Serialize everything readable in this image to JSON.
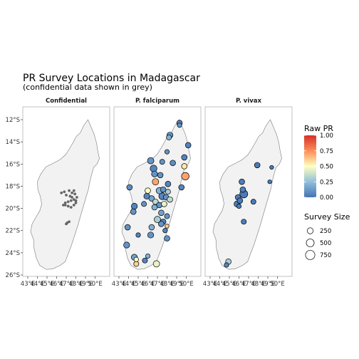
{
  "title": "PR Survey Locations in Madagascar",
  "subtitle": "(confidential data shown in grey)",
  "chart_data": {
    "type": "scatter",
    "xlim": [
      43,
      51
    ],
    "ylim": [
      -26,
      -12
    ],
    "x_ticks": [
      43,
      44,
      45,
      46,
      47,
      48,
      49,
      50
    ],
    "x_tick_labels": [
      "43°E",
      "44°E",
      "45°E",
      "46°E",
      "47°E",
      "48°E",
      "49°E",
      "50°E"
    ],
    "y_ticks": [
      -12,
      -14,
      -16,
      -18,
      -20,
      -22,
      -24,
      -26
    ],
    "y_tick_labels": [
      "12°S",
      "14°S",
      "16°S",
      "18°S",
      "20°S",
      "22°S",
      "24°S",
      "26°S"
    ],
    "color_scale": {
      "name": "Raw PR",
      "min": 0,
      "max": 1,
      "ticks": [
        "0.00",
        "0.25",
        "0.50",
        "0.75",
        "1.00"
      ],
      "colors": [
        "#4575b4",
        "#91bfdb",
        "#ffffbf",
        "#fc8d59",
        "#d73027"
      ]
    },
    "size_scale": {
      "name": "Survey Size",
      "breaks": [
        250,
        500,
        750
      ],
      "labels": [
        "250",
        "500",
        "750"
      ]
    },
    "panels": [
      {
        "name": "Confidential",
        "point_color": "#666666",
        "points": [
          {
            "lon": 46.5,
            "lat": -18.6
          },
          {
            "lon": 46.8,
            "lat": -18.5
          },
          {
            "lon": 47.3,
            "lat": -18.4
          },
          {
            "lon": 47.8,
            "lat": -18.4
          },
          {
            "lon": 47.0,
            "lat": -18.8
          },
          {
            "lon": 47.4,
            "lat": -18.9
          },
          {
            "lon": 47.9,
            "lat": -18.7
          },
          {
            "lon": 48.1,
            "lat": -19.0
          },
          {
            "lon": 47.6,
            "lat": -19.0
          },
          {
            "lon": 47.8,
            "lat": -19.2
          },
          {
            "lon": 48.0,
            "lat": -19.3
          },
          {
            "lon": 47.5,
            "lat": -19.3
          },
          {
            "lon": 46.9,
            "lat": -19.5
          },
          {
            "lon": 47.2,
            "lat": -19.4
          },
          {
            "lon": 46.9,
            "lat": -19.7
          },
          {
            "lon": 47.2,
            "lat": -19.8
          },
          {
            "lon": 47.5,
            "lat": -19.9
          },
          {
            "lon": 47.8,
            "lat": -19.7
          },
          {
            "lon": 46.7,
            "lat": -19.7
          },
          {
            "lon": 47.1,
            "lat": -21.3
          },
          {
            "lon": 47.3,
            "lat": -21.2
          },
          {
            "lon": 47.0,
            "lat": -21.4
          },
          {
            "lon": 48.0,
            "lat": -19.5
          },
          {
            "lon": 47.6,
            "lat": -18.6
          }
        ]
      },
      {
        "name": "P. falciparum",
        "points": [
          {
            "lon": 49.3,
            "lat": -12.3,
            "pr": 0.05,
            "n": 300
          },
          {
            "lon": 49.3,
            "lat": -12.5,
            "pr": 0.1,
            "n": 200
          },
          {
            "lon": 48.3,
            "lat": -13.4,
            "pr": 0.1,
            "n": 350
          },
          {
            "lon": 48.2,
            "lat": -13.6,
            "pr": 0.2,
            "n": 250
          },
          {
            "lon": 50.2,
            "lat": -14.3,
            "pr": 0.05,
            "n": 300
          },
          {
            "lon": 48.0,
            "lat": -14.9,
            "pr": 0.1,
            "n": 200
          },
          {
            "lon": 49.8,
            "lat": -15.4,
            "pr": 0.05,
            "n": 300
          },
          {
            "lon": 46.3,
            "lat": -15.7,
            "pr": 0.1,
            "n": 400
          },
          {
            "lon": 47.5,
            "lat": -15.8,
            "pr": 0.1,
            "n": 250
          },
          {
            "lon": 46.6,
            "lat": -16.4,
            "pr": 0.05,
            "n": 450
          },
          {
            "lon": 48.6,
            "lat": -15.9,
            "pr": 0.08,
            "n": 300
          },
          {
            "lon": 49.8,
            "lat": -16.2,
            "pr": 0.55,
            "n": 300
          },
          {
            "lon": 46.7,
            "lat": -16.9,
            "pr": 0.1,
            "n": 350
          },
          {
            "lon": 49.9,
            "lat": -17.1,
            "pr": 0.7,
            "n": 550
          },
          {
            "lon": 47.3,
            "lat": -17.0,
            "pr": 0.1,
            "n": 300
          },
          {
            "lon": 46.8,
            "lat": -17.6,
            "pr": 0.7,
            "n": 400
          },
          {
            "lon": 48.1,
            "lat": -17.8,
            "pr": 0.05,
            "n": 300
          },
          {
            "lon": 44.1,
            "lat": -18.1,
            "pr": 0.08,
            "n": 300
          },
          {
            "lon": 49.5,
            "lat": -18.1,
            "pr": 0.05,
            "n": 300
          },
          {
            "lon": 46.0,
            "lat": -18.4,
            "pr": 0.5,
            "n": 300
          },
          {
            "lon": 47.2,
            "lat": -18.4,
            "pr": 0.2,
            "n": 400
          },
          {
            "lon": 47.6,
            "lat": -18.3,
            "pr": 0.1,
            "n": 300
          },
          {
            "lon": 48.1,
            "lat": -18.5,
            "pr": 0.3,
            "n": 250
          },
          {
            "lon": 45.9,
            "lat": -18.9,
            "pr": 0.05,
            "n": 350
          },
          {
            "lon": 46.4,
            "lat": -19.1,
            "pr": 0.15,
            "n": 300
          },
          {
            "lon": 47.5,
            "lat": -18.9,
            "pr": 0.05,
            "n": 450
          },
          {
            "lon": 47.9,
            "lat": -19.0,
            "pr": 0.1,
            "n": 300
          },
          {
            "lon": 48.3,
            "lat": -19.2,
            "pr": 0.35,
            "n": 300
          },
          {
            "lon": 46.8,
            "lat": -19.4,
            "pr": 0.35,
            "n": 300
          },
          {
            "lon": 47.2,
            "lat": -19.7,
            "pr": 0.1,
            "n": 300
          },
          {
            "lon": 47.7,
            "lat": -19.6,
            "pr": 0.45,
            "n": 300
          },
          {
            "lon": 44.6,
            "lat": -19.8,
            "pr": 0.05,
            "n": 350
          },
          {
            "lon": 45.6,
            "lat": -19.6,
            "pr": 0.1,
            "n": 250
          },
          {
            "lon": 46.7,
            "lat": -19.9,
            "pr": 0.2,
            "n": 300
          },
          {
            "lon": 47.4,
            "lat": -20.4,
            "pr": 0.15,
            "n": 300
          },
          {
            "lon": 44.5,
            "lat": -20.3,
            "pr": 0.1,
            "n": 300
          },
          {
            "lon": 48.0,
            "lat": -20.7,
            "pr": 0.1,
            "n": 250
          },
          {
            "lon": 47.0,
            "lat": -21.0,
            "pr": 0.3,
            "n": 400
          },
          {
            "lon": 47.6,
            "lat": -21.2,
            "pr": 0.05,
            "n": 300
          },
          {
            "lon": 47.4,
            "lat": -21.4,
            "pr": 0.1,
            "n": 300
          },
          {
            "lon": 46.4,
            "lat": -21.7,
            "pr": 0.2,
            "n": 300
          },
          {
            "lon": 48.0,
            "lat": -21.6,
            "pr": 0.6,
            "n": 150
          },
          {
            "lon": 47.8,
            "lat": -22.0,
            "pr": 0.05,
            "n": 200
          },
          {
            "lon": 46.3,
            "lat": -22.4,
            "pr": 0.1,
            "n": 350
          },
          {
            "lon": 43.9,
            "lat": -21.7,
            "pr": 0.1,
            "n": 300
          },
          {
            "lon": 45.0,
            "lat": -22.4,
            "pr": 0.05,
            "n": 200
          },
          {
            "lon": 48.0,
            "lat": -22.7,
            "pr": 0.1,
            "n": 300
          },
          {
            "lon": 43.8,
            "lat": -23.3,
            "pr": 0.1,
            "n": 350
          },
          {
            "lon": 44.6,
            "lat": -24.4,
            "pr": 0.15,
            "n": 350
          },
          {
            "lon": 44.8,
            "lat": -24.6,
            "pr": 0.5,
            "n": 200
          },
          {
            "lon": 45.7,
            "lat": -24.7,
            "pr": 0.05,
            "n": 250
          },
          {
            "lon": 44.8,
            "lat": -25.0,
            "pr": 0.6,
            "n": 250
          },
          {
            "lon": 46.9,
            "lat": -25.0,
            "pr": 0.45,
            "n": 400
          },
          {
            "lon": 46.0,
            "lat": -24.3,
            "pr": 0.2,
            "n": 200
          }
        ]
      },
      {
        "name": "P. vivax",
        "points": [
          {
            "lon": 49.4,
            "lat": -16.3,
            "pr": 0.02,
            "n": 150
          },
          {
            "lon": 49.2,
            "lat": -17.6,
            "pr": 0.02,
            "n": 150
          },
          {
            "lon": 46.3,
            "lat": -17.6,
            "pr": 0.03,
            "n": 300
          },
          {
            "lon": 47.9,
            "lat": -16.1,
            "pr": 0.02,
            "n": 300
          },
          {
            "lon": 46.4,
            "lat": -18.3,
            "pr": 0.03,
            "n": 300
          },
          {
            "lon": 46.5,
            "lat": -18.7,
            "pr": 0.02,
            "n": 600
          },
          {
            "lon": 45.9,
            "lat": -19.0,
            "pr": 0.03,
            "n": 300
          },
          {
            "lon": 46.1,
            "lat": -19.3,
            "pr": 0.02,
            "n": 300
          },
          {
            "lon": 45.8,
            "lat": -19.6,
            "pr": 0.02,
            "n": 350
          },
          {
            "lon": 46.0,
            "lat": -19.8,
            "pr": 0.02,
            "n": 200
          },
          {
            "lon": 47.5,
            "lat": -19.4,
            "pr": 0.02,
            "n": 250
          },
          {
            "lon": 46.5,
            "lat": -21.2,
            "pr": 0.03,
            "n": 250
          },
          {
            "lon": 44.9,
            "lat": -24.8,
            "pr": 0.3,
            "n": 300
          },
          {
            "lon": 44.7,
            "lat": -25.1,
            "pr": 0.05,
            "n": 200
          }
        ]
      }
    ]
  }
}
